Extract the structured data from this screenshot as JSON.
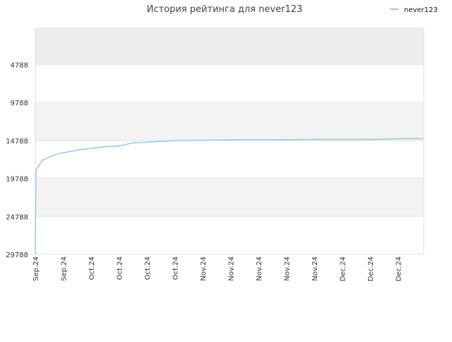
{
  "chart_data": {
    "type": "line",
    "title": "История рейтинга для never123",
    "xlabel": "",
    "ylabel": "",
    "y_inverted": true,
    "ylim": [
      29788,
      0
    ],
    "y_ticks": [
      4788,
      9788,
      14788,
      19788,
      24788,
      29788
    ],
    "grid": true,
    "legend_position": "top-right",
    "x_tick_labels": [
      "Sep.24",
      "Sep.24",
      "Oct.24",
      "Oct.24",
      "Oct.24",
      "Oct.24",
      "Nov.24",
      "Nov.24",
      "Nov.24",
      "Nov.24",
      "Nov.24",
      "Dec.24",
      "Dec.24",
      "Dec.24"
    ],
    "series": [
      {
        "name": "never123",
        "color": "#99c5ea",
        "x": [
          0,
          0.02,
          0.25,
          0.75,
          1.0,
          1.6,
          2.5,
          3.0,
          3.5,
          5.0,
          7.0,
          8.7,
          10.0,
          12.0,
          13.2,
          13.9
        ],
        "values": [
          29788,
          18700,
          17400,
          16600,
          16400,
          16000,
          15600,
          15500,
          15100,
          14800,
          14700,
          14700,
          14650,
          14650,
          14550,
          14550
        ]
      }
    ]
  }
}
